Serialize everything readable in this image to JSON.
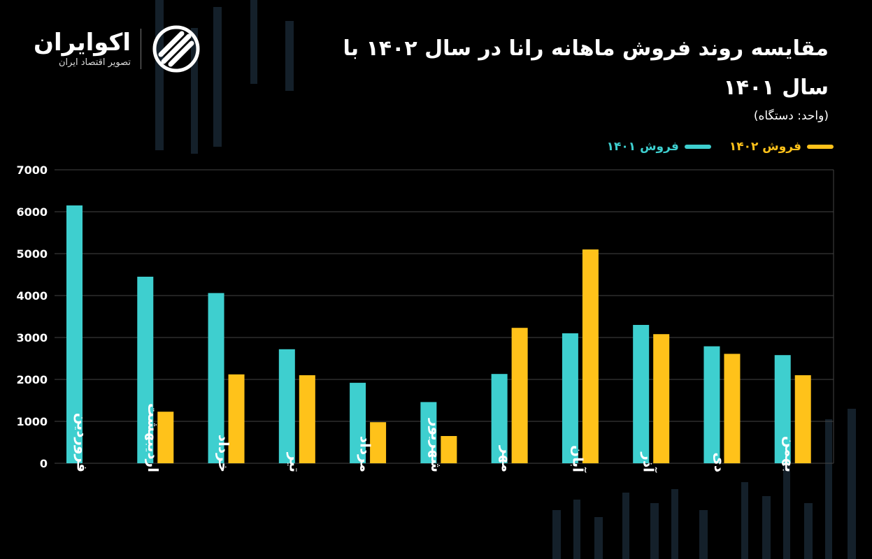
{
  "header": {
    "title": "مقایسه روند فروش ماهانه رانا در سال ۱۴۰۲ با سال ۱۴۰۱",
    "unit": "(واحد: دستگاه)"
  },
  "brand": {
    "name": "اکوایران",
    "subtitle": "تصویر اقتصاد ایران",
    "icon": "ecoiran-logo-icon"
  },
  "colors": {
    "background": "#000000",
    "series_1401": "#3ecfcf",
    "series_1402": "#ffc21a",
    "grid": "#444444"
  },
  "chart_data": {
    "type": "bar",
    "categories": [
      "فروردین",
      "اردیبهشت",
      "خرداد",
      "تیر",
      "مرداد",
      "شهریور",
      "مهر",
      "آبان",
      "آذر",
      "دی",
      "بهمن"
    ],
    "series": [
      {
        "name": "فروش ۱۴۰۱",
        "values": [
          6150,
          4450,
          4060,
          2720,
          1920,
          1460,
          2130,
          3100,
          3300,
          2790,
          2580
        ]
      },
      {
        "name": "فروش ۱۴۰۲",
        "values": [
          0,
          1230,
          2120,
          2100,
          980,
          650,
          3230,
          5100,
          3080,
          2610,
          2100
        ]
      }
    ],
    "yticks": [
      "0",
      "1000",
      "2000",
      "3000",
      "4000",
      "5000",
      "6000",
      "7000"
    ],
    "ylim": [
      0,
      7000
    ],
    "grid": true,
    "legend": "top-right",
    "title": "مقایسه روند فروش ماهانه رانا در سال ۱۴۰۲ با سال ۱۴۰۱",
    "xlabel": "",
    "ylabel": ""
  }
}
